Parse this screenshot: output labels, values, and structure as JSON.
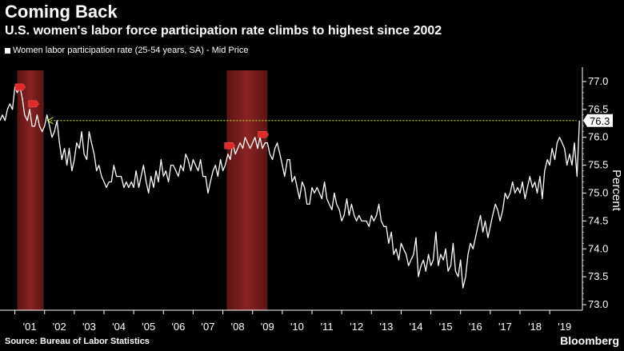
{
  "header": {
    "title": "Coming Back",
    "subtitle": "U.S. women's labor force participation rate climbs to highest since 2002"
  },
  "legend": {
    "label": "Women labor participation rate (25-54 years, SA) - Mid Price"
  },
  "footer": {
    "source": "Source: Bureau of Labor Statistics",
    "brand": "Bloomberg"
  },
  "chart_data": {
    "type": "line",
    "ylabel": "Percent",
    "ylim": [
      72.9,
      77.2
    ],
    "xlim": [
      2000.0,
      2019.6
    ],
    "yticks": [
      73.0,
      73.5,
      74.0,
      74.5,
      75.0,
      75.5,
      76.0,
      76.5,
      77.0
    ],
    "ytick_labels": [
      "73.0",
      "73.5",
      "74.0",
      "74.5",
      "75.0",
      "75.5",
      "76.0",
      "76.5",
      "77.0"
    ],
    "xticks": [
      2001,
      2002,
      2003,
      2004,
      2005,
      2006,
      2007,
      2008,
      2009,
      2010,
      2011,
      2012,
      2013,
      2014,
      2015,
      2016,
      2017,
      2018,
      2019
    ],
    "xtick_labels": [
      "'01",
      "'02",
      "'03",
      "'04",
      "'05",
      "'06",
      "'07",
      "'08",
      "'09",
      "'10",
      "'11",
      "'12",
      "'13",
      "'14",
      "'15",
      "'16",
      "'17",
      "'18",
      "'19"
    ],
    "last_value_label": "76.3",
    "reference_line": {
      "value": 76.3,
      "from_x": 2001.6,
      "to_x": 2019.4,
      "color": "#b5e61d"
    },
    "recessions": [
      {
        "start": 2000.58,
        "end": 2001.47
      },
      {
        "start": 2007.63,
        "end": 2009.0
      }
    ],
    "markers": [
      {
        "x": 2000.67,
        "y": 76.9
      },
      {
        "x": 2001.12,
        "y": 76.6
      },
      {
        "x": 2007.72,
        "y": 75.85
      },
      {
        "x": 2008.85,
        "y": 76.05
      }
    ],
    "series": [
      {
        "color": "#ffffff",
        "points": [
          [
            2000.0,
            76.3
          ],
          [
            2000.08,
            76.4
          ],
          [
            2000.17,
            76.3
          ],
          [
            2000.25,
            76.5
          ],
          [
            2000.33,
            76.6
          ],
          [
            2000.42,
            76.5
          ],
          [
            2000.5,
            76.9
          ],
          [
            2000.58,
            76.8
          ],
          [
            2000.67,
            76.9
          ],
          [
            2000.75,
            76.7
          ],
          [
            2000.83,
            76.4
          ],
          [
            2000.92,
            76.3
          ],
          [
            2001.0,
            76.5
          ],
          [
            2001.08,
            76.2
          ],
          [
            2001.17,
            76.2
          ],
          [
            2001.25,
            76.4
          ],
          [
            2001.33,
            76.2
          ],
          [
            2001.42,
            76.1
          ],
          [
            2001.5,
            76.2
          ],
          [
            2001.58,
            76.4
          ],
          [
            2001.67,
            76.2
          ],
          [
            2001.75,
            76.0
          ],
          [
            2001.83,
            76.1
          ],
          [
            2001.92,
            76.3
          ],
          [
            2002.0,
            75.9
          ],
          [
            2002.08,
            75.6
          ],
          [
            2002.17,
            75.8
          ],
          [
            2002.25,
            75.5
          ],
          [
            2002.33,
            75.8
          ],
          [
            2002.42,
            75.4
          ],
          [
            2002.5,
            75.6
          ],
          [
            2002.58,
            75.9
          ],
          [
            2002.67,
            75.8
          ],
          [
            2002.75,
            76.1
          ],
          [
            2002.83,
            75.7
          ],
          [
            2002.92,
            75.6
          ],
          [
            2003.0,
            76.1
          ],
          [
            2003.08,
            75.9
          ],
          [
            2003.17,
            75.7
          ],
          [
            2003.25,
            75.4
          ],
          [
            2003.33,
            75.5
          ],
          [
            2003.42,
            75.3
          ],
          [
            2003.5,
            75.2
          ],
          [
            2003.58,
            75.1
          ],
          [
            2003.67,
            75.2
          ],
          [
            2003.75,
            75.2
          ],
          [
            2003.83,
            75.5
          ],
          [
            2003.92,
            75.3
          ],
          [
            2004.0,
            75.3
          ],
          [
            2004.08,
            75.3
          ],
          [
            2004.17,
            75.1
          ],
          [
            2004.25,
            75.2
          ],
          [
            2004.33,
            75.1
          ],
          [
            2004.42,
            75.2
          ],
          [
            2004.5,
            75.1
          ],
          [
            2004.58,
            75.4
          ],
          [
            2004.67,
            75.1
          ],
          [
            2004.75,
            75.3
          ],
          [
            2004.83,
            75.5
          ],
          [
            2004.92,
            75.2
          ],
          [
            2005.0,
            75.0
          ],
          [
            2005.08,
            75.3
          ],
          [
            2005.17,
            75.1
          ],
          [
            2005.25,
            75.4
          ],
          [
            2005.33,
            75.2
          ],
          [
            2005.42,
            75.6
          ],
          [
            2005.5,
            75.3
          ],
          [
            2005.58,
            75.4
          ],
          [
            2005.67,
            75.2
          ],
          [
            2005.75,
            75.5
          ],
          [
            2005.83,
            75.5
          ],
          [
            2005.92,
            75.4
          ],
          [
            2006.0,
            75.3
          ],
          [
            2006.08,
            75.5
          ],
          [
            2006.17,
            75.4
          ],
          [
            2006.25,
            75.7
          ],
          [
            2006.33,
            75.6
          ],
          [
            2006.42,
            75.4
          ],
          [
            2006.5,
            75.6
          ],
          [
            2006.58,
            75.5
          ],
          [
            2006.67,
            75.4
          ],
          [
            2006.75,
            75.6
          ],
          [
            2006.83,
            75.3
          ],
          [
            2006.92,
            75.3
          ],
          [
            2007.0,
            75.0
          ],
          [
            2007.08,
            75.2
          ],
          [
            2007.17,
            75.4
          ],
          [
            2007.25,
            75.5
          ],
          [
            2007.33,
            75.3
          ],
          [
            2007.42,
            75.6
          ],
          [
            2007.5,
            75.4
          ],
          [
            2007.58,
            75.5
          ],
          [
            2007.67,
            75.7
          ],
          [
            2007.75,
            75.6
          ],
          [
            2007.83,
            75.9
          ],
          [
            2007.92,
            75.7
          ],
          [
            2008.0,
            75.8
          ],
          [
            2008.08,
            75.9
          ],
          [
            2008.17,
            75.8
          ],
          [
            2008.25,
            76.0
          ],
          [
            2008.33,
            75.9
          ],
          [
            2008.42,
            75.8
          ],
          [
            2008.5,
            75.9
          ],
          [
            2008.58,
            76.0
          ],
          [
            2008.67,
            75.8
          ],
          [
            2008.75,
            76.0
          ],
          [
            2008.83,
            75.8
          ],
          [
            2008.92,
            75.9
          ],
          [
            2009.0,
            75.9
          ],
          [
            2009.08,
            75.7
          ],
          [
            2009.17,
            75.6
          ],
          [
            2009.25,
            75.8
          ],
          [
            2009.33,
            75.9
          ],
          [
            2009.42,
            75.7
          ],
          [
            2009.5,
            75.5
          ],
          [
            2009.58,
            75.3
          ],
          [
            2009.67,
            75.6
          ],
          [
            2009.75,
            75.6
          ],
          [
            2009.83,
            75.2
          ],
          [
            2009.92,
            75.3
          ],
          [
            2010.0,
            75.1
          ],
          [
            2010.08,
            74.9
          ],
          [
            2010.17,
            75.2
          ],
          [
            2010.25,
            75.1
          ],
          [
            2010.33,
            74.8
          ],
          [
            2010.42,
            74.8
          ],
          [
            2010.5,
            75.1
          ],
          [
            2010.58,
            75.0
          ],
          [
            2010.67,
            75.1
          ],
          [
            2010.75,
            75.0
          ],
          [
            2010.83,
            74.9
          ],
          [
            2010.92,
            75.2
          ],
          [
            2011.0,
            74.9
          ],
          [
            2011.08,
            74.8
          ],
          [
            2011.17,
            74.7
          ],
          [
            2011.25,
            75.0
          ],
          [
            2011.33,
            74.8
          ],
          [
            2011.42,
            74.7
          ],
          [
            2011.5,
            74.5
          ],
          [
            2011.58,
            74.6
          ],
          [
            2011.67,
            74.9
          ],
          [
            2011.75,
            74.6
          ],
          [
            2011.83,
            74.8
          ],
          [
            2011.92,
            74.6
          ],
          [
            2012.0,
            74.5
          ],
          [
            2012.08,
            74.6
          ],
          [
            2012.17,
            74.5
          ],
          [
            2012.25,
            74.5
          ],
          [
            2012.33,
            74.5
          ],
          [
            2012.42,
            74.4
          ],
          [
            2012.5,
            74.6
          ],
          [
            2012.58,
            74.5
          ],
          [
            2012.67,
            74.6
          ],
          [
            2012.75,
            74.8
          ],
          [
            2012.83,
            74.5
          ],
          [
            2012.92,
            74.4
          ],
          [
            2013.0,
            74.4
          ],
          [
            2013.08,
            74.1
          ],
          [
            2013.17,
            74.3
          ],
          [
            2013.25,
            73.9
          ],
          [
            2013.33,
            74.0
          ],
          [
            2013.42,
            73.8
          ],
          [
            2013.5,
            74.1
          ],
          [
            2013.58,
            74.0
          ],
          [
            2013.67,
            73.9
          ],
          [
            2013.75,
            73.7
          ],
          [
            2013.83,
            73.8
          ],
          [
            2013.92,
            73.9
          ],
          [
            2014.0,
            74.2
          ],
          [
            2014.08,
            73.5
          ],
          [
            2014.17,
            73.7
          ],
          [
            2014.25,
            73.8
          ],
          [
            2014.33,
            73.6
          ],
          [
            2014.42,
            73.9
          ],
          [
            2014.5,
            73.7
          ],
          [
            2014.58,
            73.8
          ],
          [
            2014.67,
            74.3
          ],
          [
            2014.75,
            73.7
          ],
          [
            2014.83,
            73.9
          ],
          [
            2014.92,
            73.8
          ],
          [
            2015.0,
            74.0
          ],
          [
            2015.08,
            73.6
          ],
          [
            2015.17,
            73.7
          ],
          [
            2015.25,
            74.1
          ],
          [
            2015.33,
            73.6
          ],
          [
            2015.42,
            73.5
          ],
          [
            2015.5,
            73.8
          ],
          [
            2015.58,
            73.3
          ],
          [
            2015.67,
            73.5
          ],
          [
            2015.75,
            73.9
          ],
          [
            2015.83,
            74.1
          ],
          [
            2015.92,
            74.0
          ],
          [
            2016.0,
            74.2
          ],
          [
            2016.08,
            74.4
          ],
          [
            2016.17,
            74.6
          ],
          [
            2016.25,
            74.3
          ],
          [
            2016.33,
            74.5
          ],
          [
            2016.42,
            74.2
          ],
          [
            2016.5,
            74.4
          ],
          [
            2016.58,
            74.6
          ],
          [
            2016.67,
            74.8
          ],
          [
            2016.75,
            74.7
          ],
          [
            2016.83,
            74.5
          ],
          [
            2016.92,
            74.7
          ],
          [
            2017.0,
            75.0
          ],
          [
            2017.08,
            74.9
          ],
          [
            2017.17,
            75.0
          ],
          [
            2017.25,
            75.2
          ],
          [
            2017.33,
            75.0
          ],
          [
            2017.42,
            75.1
          ],
          [
            2017.5,
            75.0
          ],
          [
            2017.58,
            75.2
          ],
          [
            2017.67,
            74.9
          ],
          [
            2017.75,
            75.1
          ],
          [
            2017.83,
            75.3
          ],
          [
            2017.92,
            75.1
          ],
          [
            2018.0,
            75.2
          ],
          [
            2018.08,
            75.0
          ],
          [
            2018.17,
            75.3
          ],
          [
            2018.25,
            74.9
          ],
          [
            2018.33,
            75.4
          ],
          [
            2018.42,
            75.6
          ],
          [
            2018.5,
            75.5
          ],
          [
            2018.58,
            75.8
          ],
          [
            2018.67,
            75.6
          ],
          [
            2018.75,
            75.9
          ],
          [
            2018.83,
            76.0
          ],
          [
            2018.92,
            75.9
          ],
          [
            2019.0,
            75.8
          ],
          [
            2019.08,
            75.5
          ],
          [
            2019.17,
            75.7
          ],
          [
            2019.25,
            75.5
          ],
          [
            2019.33,
            75.9
          ],
          [
            2019.42,
            75.3
          ],
          [
            2019.5,
            76.3
          ]
        ]
      }
    ]
  }
}
